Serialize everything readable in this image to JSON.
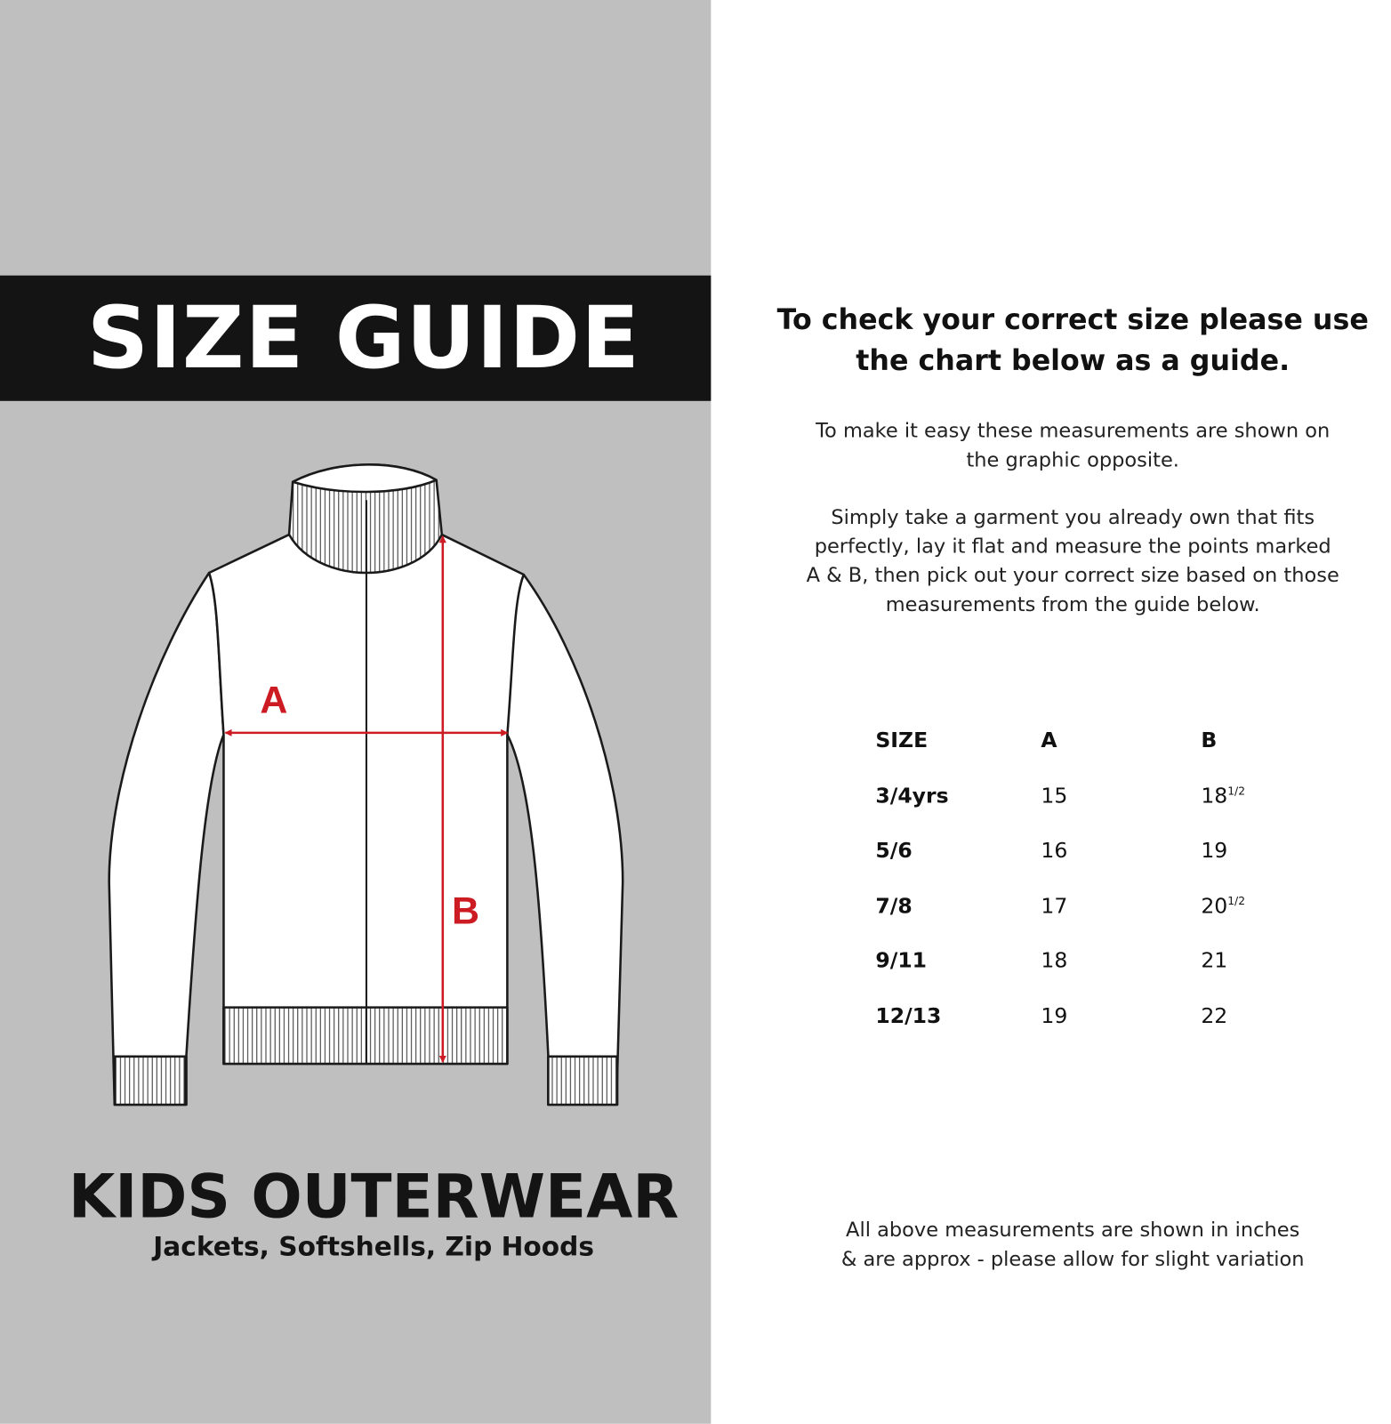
{
  "left_panel": {
    "title": "SIZE GUIDE",
    "product": "KIDS OUTERWEAR",
    "product_types": "Jackets, Softshells, Zip Hoods",
    "diagram_labels": {
      "a": "A",
      "b": "B"
    },
    "colors": {
      "background": "#c0bfc0",
      "title_bar": "#141414",
      "measure": "#cc1b22"
    }
  },
  "right_panel": {
    "heading_line1": "To check your correct size please use",
    "heading_line2": "the chart below as a guide.",
    "para1_line1": "To make it easy these measurements are shown on",
    "para1_line2": "the graphic opposite.",
    "para2_line1": "Simply take a garment you already own that fits",
    "para2_line2": "perfectly, lay it flat and measure the points marked",
    "para2_line3": "A & B, then pick out your correct size based on those",
    "para2_line4": "measurements from the guide below.",
    "table": {
      "headers": [
        "SIZE",
        "A",
        "B"
      ],
      "rows": [
        {
          "size": "3/4yrs",
          "a": "15",
          "b": "18",
          "b_frac": "1/2"
        },
        {
          "size": "5/6",
          "a": "16",
          "b": "19",
          "b_frac": ""
        },
        {
          "size": "7/8",
          "a": "17",
          "b": "20",
          "b_frac": "1/2"
        },
        {
          "size": "9/11",
          "a": "18",
          "b": "21",
          "b_frac": ""
        },
        {
          "size": "12/13",
          "a": "19",
          "b": "22",
          "b_frac": ""
        }
      ]
    },
    "footer_line1": "All above measurements are shown in inches",
    "footer_line2": "& are approx - please allow for slight variation"
  }
}
